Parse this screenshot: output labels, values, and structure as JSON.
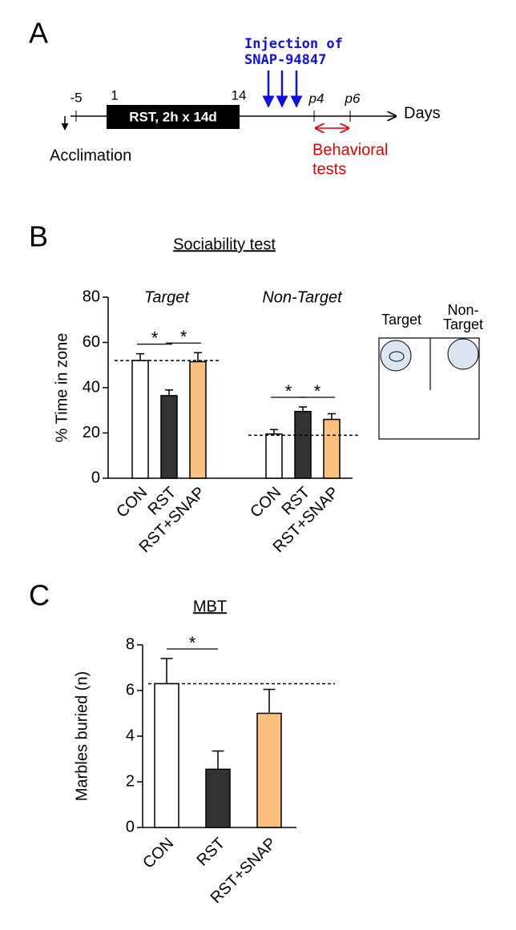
{
  "panel_labels": [
    "A",
    "B",
    "C"
  ],
  "timeline": {
    "ticks": [
      "-5",
      "1",
      "14",
      "p4",
      "p6"
    ],
    "box": "RST, 2h x 14d",
    "injection": [
      "Injection of",
      "SNAP-94847"
    ],
    "axis_label": "Days",
    "acclimation": "Acclimation",
    "behavior": [
      "Behavioral",
      "tests"
    ]
  },
  "arena": {
    "labels": [
      "Target",
      [
        "Non-",
        "Target"
      ]
    ]
  },
  "chart_data": [
    {
      "type": "grouped-bar",
      "title": "Sociability test",
      "ylabel": "% Time in zone",
      "groups": [
        "Target",
        "Non-Target"
      ],
      "series": [
        {
          "name": "CON",
          "color": "#ffffff",
          "values": [
            52,
            19.5
          ],
          "errors": [
            3,
            2
          ]
        },
        {
          "name": "RST",
          "color": "#333333",
          "values": [
            36.5,
            29.5
          ],
          "errors": [
            2.5,
            2
          ]
        },
        {
          "name": "RST+SNAP",
          "color": "#fbbf7f",
          "values": [
            51.5,
            26
          ],
          "errors": [
            4,
            2.5
          ]
        }
      ],
      "ylim": [
        0,
        80
      ],
      "yticks": [
        0,
        20,
        40,
        60,
        80
      ],
      "reference_lines": [
        52,
        19
      ],
      "significance": [
        {
          "group": 0,
          "between": [
            0,
            1
          ],
          "label": "*"
        },
        {
          "group": 0,
          "between": [
            1,
            2
          ],
          "label": "*"
        },
        {
          "group": 1,
          "between": [
            0,
            1
          ],
          "label": "*"
        },
        {
          "group": 1,
          "between": [
            1,
            2
          ],
          "label": "*"
        }
      ]
    },
    {
      "type": "bar",
      "title": "MBT",
      "ylabel": "Marbles buried (n)",
      "categories": [
        "CON",
        "RST",
        "RST+SNAP"
      ],
      "values": [
        6.3,
        2.55,
        5.0
      ],
      "errors": [
        1.1,
        0.8,
        1.05
      ],
      "colors": [
        "#ffffff",
        "#333333",
        "#fbbf7f"
      ],
      "ylim": [
        0,
        8
      ],
      "yticks": [
        0,
        2,
        4,
        6,
        8
      ],
      "reference_line": 6.3,
      "significance": [
        {
          "between": [
            0,
            1
          ],
          "label": "*"
        }
      ]
    }
  ]
}
